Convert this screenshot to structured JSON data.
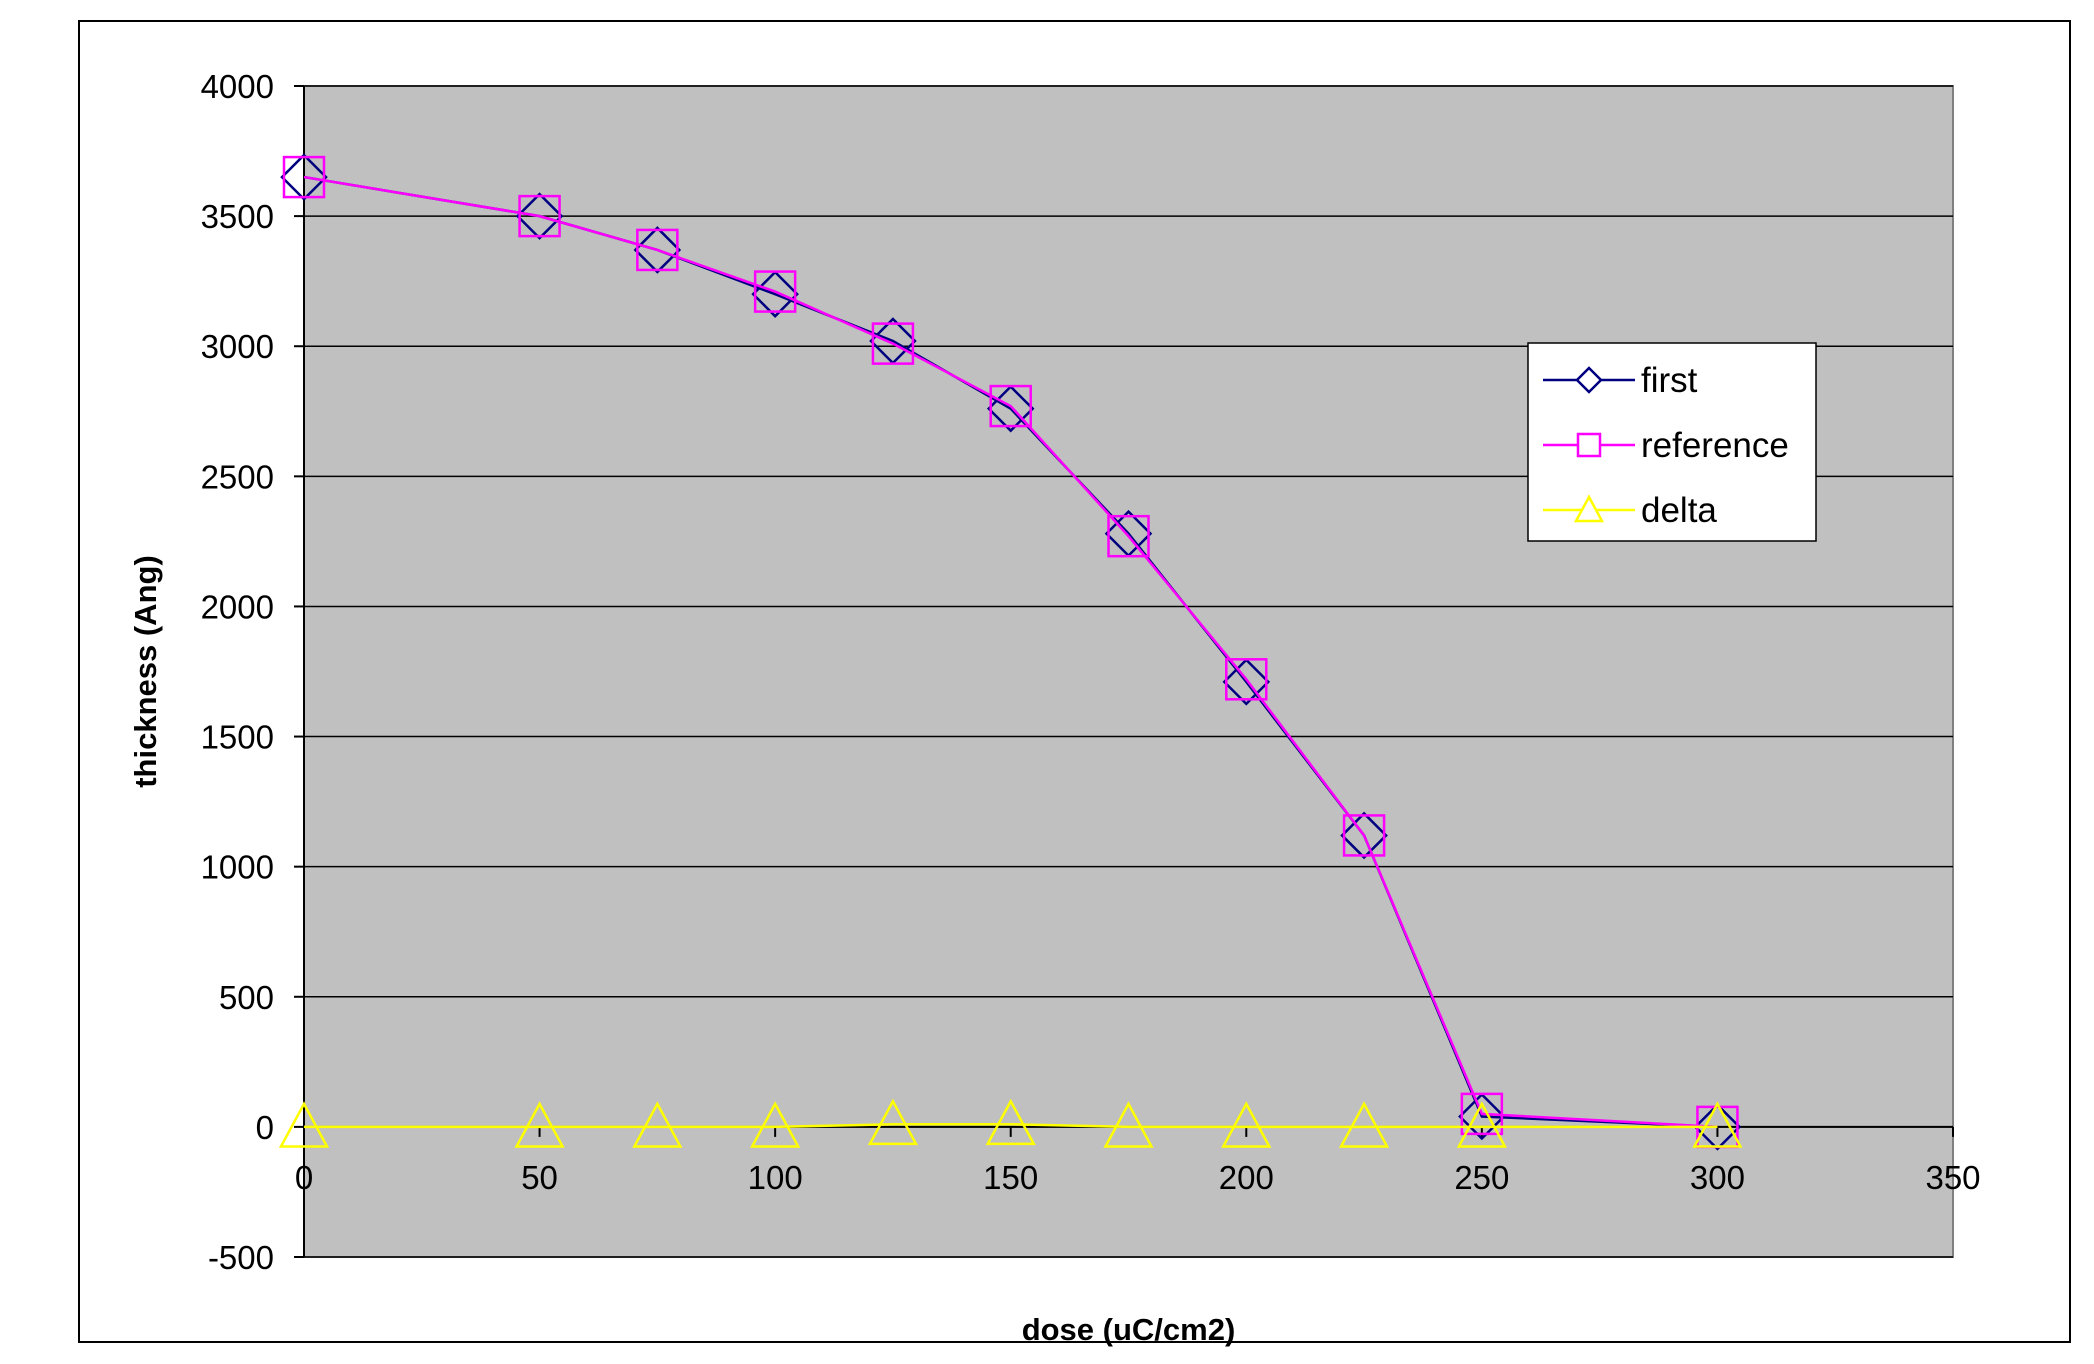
{
  "chart_data": {
    "type": "line",
    "title": "",
    "xlabel": "dose (uC/cm2)",
    "ylabel": "thickness (Ang)",
    "xlim": [
      0,
      350
    ],
    "ylim": [
      -500,
      4000
    ],
    "xticks": [
      "0",
      "50",
      "100",
      "150",
      "200",
      "250",
      "300",
      "350"
    ],
    "yticks": [
      "-500",
      "0",
      "500",
      "1000",
      "1500",
      "2000",
      "2500",
      "3000",
      "3500",
      "4000"
    ],
    "grid": true,
    "legend_position": "right",
    "plot_background": "#c0c0c0",
    "series": [
      {
        "name": "first",
        "color": "#000080",
        "marker": "diamond",
        "x": [
          0,
          50,
          75,
          100,
          125,
          150,
          175,
          200,
          225,
          250,
          300
        ],
        "y": [
          3650,
          3500,
          3370,
          3200,
          3020,
          2760,
          2280,
          1710,
          1120,
          40,
          0
        ]
      },
      {
        "name": "reference",
        "color": "#ff00ff",
        "marker": "square",
        "x": [
          0,
          50,
          75,
          100,
          125,
          150,
          175,
          200,
          225,
          250,
          300
        ],
        "y": [
          3650,
          3500,
          3370,
          3210,
          3010,
          2770,
          2270,
          1720,
          1120,
          50,
          0
        ]
      },
      {
        "name": "delta",
        "color": "#ffff00",
        "marker": "triangle",
        "x": [
          0,
          50,
          75,
          100,
          125,
          150,
          175,
          200,
          225,
          250,
          300
        ],
        "y": [
          0,
          0,
          0,
          0,
          10,
          10,
          0,
          0,
          0,
          0,
          0
        ]
      }
    ]
  }
}
